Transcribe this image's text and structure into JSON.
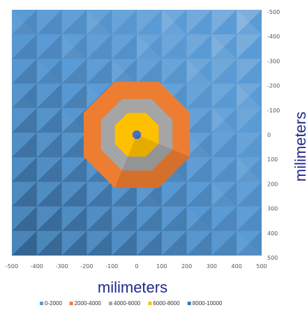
{
  "chart_data": {
    "type": "heatmap",
    "subtype": "surface-contour",
    "x_ticks": [
      "-500",
      "-400",
      "-300",
      "-200",
      "-100",
      "0",
      "100",
      "200",
      "300",
      "400",
      "500"
    ],
    "y_ticks": [
      "-500",
      "-400",
      "-300",
      "-200",
      "-100",
      "0",
      "100",
      "200",
      "300",
      "400",
      "500"
    ],
    "xlabel": "milimeters",
    "ylabel": "milimeters",
    "xlim": [
      -500,
      500
    ],
    "ylim": [
      -500,
      500
    ],
    "grid": false,
    "legend_position": "bottom",
    "bands": [
      {
        "name": "0-2000",
        "color": "#5b9bd5"
      },
      {
        "name": "2000-4000",
        "color": "#ed7d31"
      },
      {
        "name": "4000-6000",
        "color": "#a5a5a5"
      },
      {
        "name": "6000-8000",
        "color": "#ffc000"
      },
      {
        "name": "8000-10000",
        "color": "#4472c4"
      }
    ],
    "contours": [
      {
        "band": "2000-4000",
        "radius": 230
      },
      {
        "band": "4000-6000",
        "radius": 155
      },
      {
        "band": "6000-8000",
        "radius": 95
      },
      {
        "band": "8000-10000",
        "radius": 18
      }
    ]
  }
}
